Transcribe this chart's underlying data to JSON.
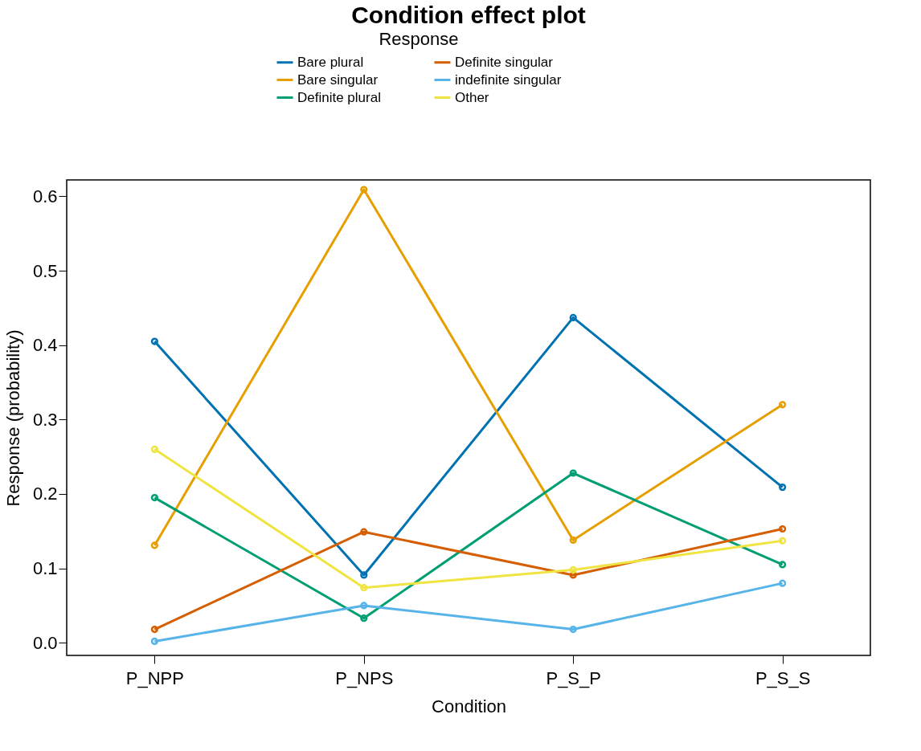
{
  "chart_data": {
    "type": "line",
    "title": "Condition effect plot",
    "xlabel": "Condition",
    "ylabel": "Response (probability)",
    "legend_title": "Response",
    "legend": "top",
    "marker": "circle",
    "line_style": "solid",
    "grid": false,
    "categories": [
      "P_NPP",
      "P_NPS",
      "P_S_P",
      "P_S_S"
    ],
    "ylim": [
      -0.017,
      0.622
    ],
    "yticks": [
      {
        "value": 0,
        "label": "0.0"
      },
      {
        "value": 0.1,
        "label": "0.1"
      },
      {
        "value": 0.2,
        "label": "0.2"
      },
      {
        "value": 0.3,
        "label": "0.3"
      },
      {
        "value": 0.4,
        "label": "0.4"
      },
      {
        "value": 0.5,
        "label": "0.5"
      },
      {
        "value": 0.6,
        "label": "0.6"
      }
    ],
    "series": [
      {
        "name": "Bare plural",
        "color": "#0072b2",
        "values": [
          0.405,
          0.091,
          0.437,
          0.209
        ]
      },
      {
        "name": "Bare singular",
        "color": "#e69f00",
        "values": [
          0.131,
          0.609,
          0.138,
          0.32
        ]
      },
      {
        "name": "Definite plural",
        "color": "#009e73",
        "values": [
          0.195,
          0.033,
          0.228,
          0.105
        ]
      },
      {
        "name": "Definite singular",
        "color": "#d55e00",
        "values": [
          0.018,
          0.149,
          0.091,
          0.153
        ]
      },
      {
        "name": "indefinite singular",
        "color": "#56b4e9",
        "values": [
          0.002,
          0.05,
          0.018,
          0.08
        ]
      },
      {
        "name": "Other",
        "color": "#f0e442",
        "values": [
          0.26,
          0.074,
          0.098,
          0.137
        ]
      }
    ]
  }
}
